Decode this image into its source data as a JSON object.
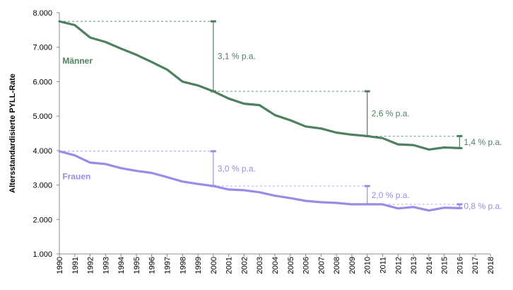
{
  "chart_data": {
    "type": "line",
    "title": "",
    "xlabel": "",
    "ylabel": "Altersstandardisierte PYLL-Rate",
    "xlim": [
      1990,
      2018
    ],
    "ylim": [
      1000,
      8000
    ],
    "grid": false,
    "x_tick_labels": [
      "1990",
      "1991",
      "1992",
      "1993",
      "1994",
      "1995",
      "1996",
      "1997",
      "1998",
      "1999",
      "2000",
      "2001",
      "2002",
      "2003",
      "2004",
      "2005",
      "2006",
      "2007",
      "2008",
      "2009",
      "2010",
      "2011",
      "2012",
      "2013",
      "2014",
      "2015",
      "2016",
      "2017",
      "2018"
    ],
    "y_ticks": [
      1000,
      2000,
      3000,
      4000,
      5000,
      6000,
      7000,
      8000
    ],
    "y_tick_labels": [
      "1.000",
      "2.000",
      "3.000",
      "4.000",
      "5.000",
      "6.000",
      "7.000",
      "8.000"
    ],
    "x": [
      1990,
      1991,
      1992,
      1993,
      1994,
      1995,
      1996,
      1997,
      1998,
      1999,
      2000,
      2001,
      2002,
      2003,
      2004,
      2005,
      2006,
      2007,
      2008,
      2009,
      2010,
      2011,
      2012,
      2013,
      2014,
      2015,
      2016
    ],
    "series": [
      {
        "name": "Männer",
        "color": "#4e7f5f",
        "values": [
          7750,
          7640,
          7280,
          7150,
          6960,
          6780,
          6570,
          6350,
          6000,
          5890,
          5720,
          5510,
          5360,
          5320,
          5030,
          4880,
          4700,
          4640,
          4520,
          4460,
          4420,
          4360,
          4180,
          4160,
          4030,
          4090,
          4070
        ]
      },
      {
        "name": "Frauen",
        "color": "#9b8be6",
        "values": [
          3980,
          3860,
          3650,
          3610,
          3490,
          3410,
          3350,
          3230,
          3100,
          3030,
          2970,
          2870,
          2850,
          2790,
          2690,
          2620,
          2540,
          2500,
          2480,
          2440,
          2440,
          2440,
          2320,
          2360,
          2260,
          2340,
          2330
        ]
      }
    ],
    "annotations": [
      {
        "series": "Männer",
        "x_start": 1990,
        "x_end": 2000,
        "from": 7750,
        "to": 5720,
        "label": "3,1 % p.a."
      },
      {
        "series": "Männer",
        "x_start": 2000,
        "x_end": 2010,
        "from": 5720,
        "to": 4420,
        "label": "2,6 % p.a."
      },
      {
        "series": "Männer",
        "x_start": 2010,
        "x_end": 2016,
        "from": 4420,
        "to": 4070,
        "label": "1,4 % p.a."
      },
      {
        "series": "Frauen",
        "x_start": 1990,
        "x_end": 2000,
        "from": 3980,
        "to": 2970,
        "label": "3,0 % p.a."
      },
      {
        "series": "Frauen",
        "x_start": 2000,
        "x_end": 2010,
        "from": 2970,
        "to": 2440,
        "label": "2,0 % p.a."
      },
      {
        "series": "Frauen",
        "x_start": 2010,
        "x_end": 2016,
        "from": 2440,
        "to": 2330,
        "label": "0,8 % p.a."
      }
    ]
  }
}
